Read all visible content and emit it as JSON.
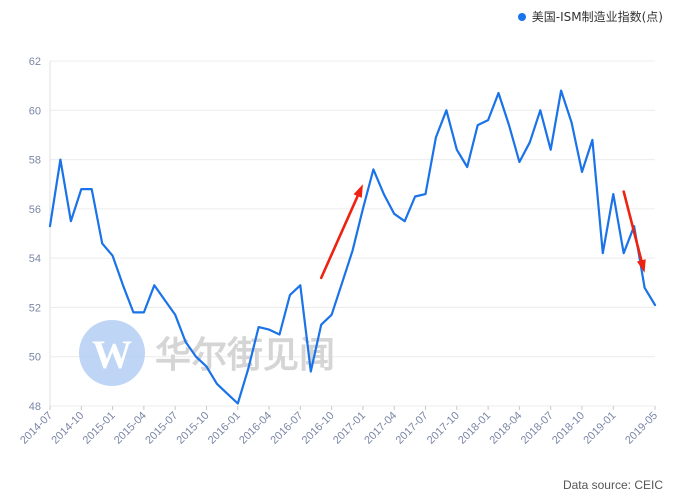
{
  "chart_data": {
    "type": "line",
    "title": "",
    "xlabel": "",
    "ylabel": "",
    "ylim": [
      48,
      62
    ],
    "yticks": [
      48,
      50,
      52,
      54,
      56,
      58,
      60,
      62
    ],
    "grid": true,
    "legend_position": "top-right",
    "x_tick_labels": [
      "2014-07",
      "2014-10",
      "2015-01",
      "2015-04",
      "2015-07",
      "2015-10",
      "2016-01",
      "2016-04",
      "2016-07",
      "2016-10",
      "2017-01",
      "2017-04",
      "2017-07",
      "2017-10",
      "2018-01",
      "2018-04",
      "2018-07",
      "2018-10",
      "2019-01",
      "2019-05"
    ],
    "x": [
      "2014-07",
      "2014-08",
      "2014-09",
      "2014-10",
      "2014-11",
      "2014-12",
      "2015-01",
      "2015-02",
      "2015-03",
      "2015-04",
      "2015-05",
      "2015-06",
      "2015-07",
      "2015-08",
      "2015-09",
      "2015-10",
      "2015-11",
      "2015-12",
      "2016-01",
      "2016-02",
      "2016-03",
      "2016-04",
      "2016-05",
      "2016-06",
      "2016-07",
      "2016-08",
      "2016-09",
      "2016-10",
      "2016-11",
      "2016-12",
      "2017-01",
      "2017-02",
      "2017-03",
      "2017-04",
      "2017-05",
      "2017-06",
      "2017-07",
      "2017-08",
      "2017-09",
      "2017-10",
      "2017-11",
      "2017-12",
      "2018-01",
      "2018-02",
      "2018-03",
      "2018-04",
      "2018-05",
      "2018-06",
      "2018-07",
      "2018-08",
      "2018-09",
      "2018-10",
      "2018-11",
      "2018-12",
      "2019-01",
      "2019-02",
      "2019-03",
      "2019-04",
      "2019-05"
    ],
    "series": [
      {
        "name": "美国-ISM制造业指数(点)",
        "color": "#1a73e8",
        "values": [
          55.3,
          58.0,
          55.5,
          56.8,
          56.8,
          54.6,
          54.1,
          52.9,
          51.8,
          51.8,
          52.9,
          52.3,
          51.7,
          50.6,
          50.0,
          49.6,
          48.9,
          48.5,
          48.1,
          49.5,
          51.2,
          51.1,
          50.9,
          52.5,
          52.9,
          49.4,
          51.3,
          51.7,
          53.0,
          54.3,
          56.0,
          57.6,
          56.6,
          55.8,
          55.5,
          56.5,
          56.6,
          58.9,
          60.0,
          58.4,
          57.7,
          59.4,
          59.6,
          60.7,
          59.4,
          57.9,
          58.7,
          60.0,
          58.4,
          60.8,
          59.5,
          57.5,
          58.8,
          54.2,
          56.6,
          54.2,
          55.3,
          52.8,
          52.1
        ]
      }
    ],
    "annotations": [
      {
        "type": "arrow",
        "color": "#ee2211",
        "from": [
          "2016-09",
          53.2
        ],
        "to": [
          "2017-01",
          57.0
        ]
      },
      {
        "type": "arrow",
        "color": "#ee2211",
        "from": [
          "2019-02",
          56.7
        ],
        "to": [
          "2019-04",
          53.4
        ]
      }
    ]
  },
  "watermark": {
    "text": "华尔街见闻",
    "logo_letter": "W"
  },
  "source_text": "Data source: CEIC"
}
